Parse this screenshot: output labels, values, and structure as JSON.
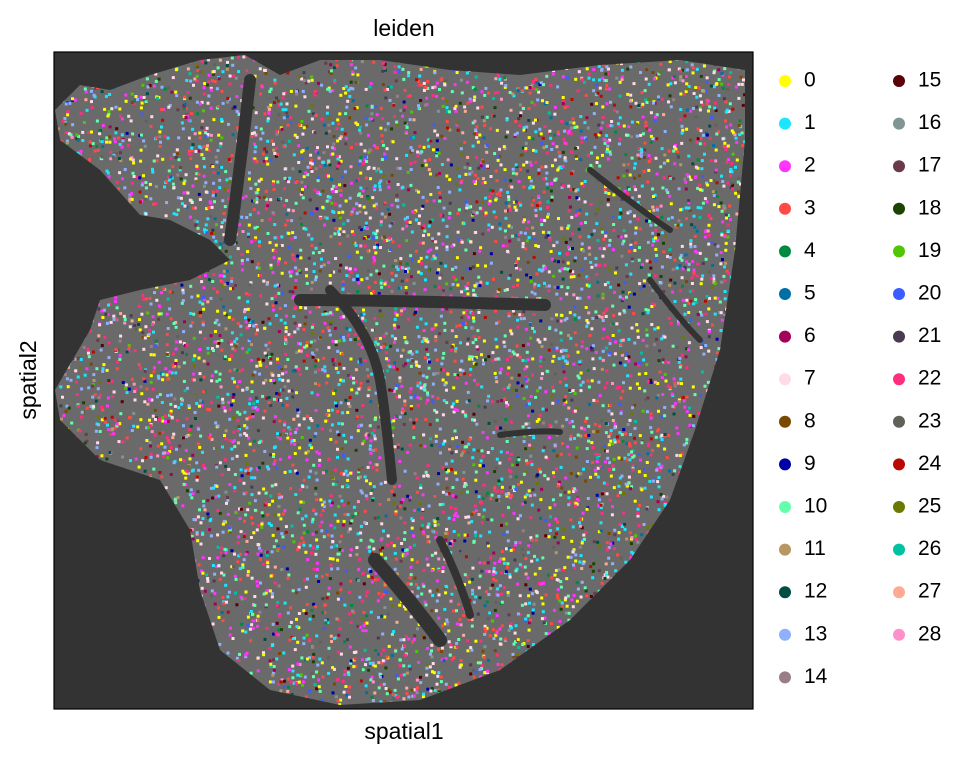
{
  "chart_data": {
    "type": "scatter",
    "title": "leiden",
    "x_label": "spatial1",
    "y_label": "spatial2",
    "series": [
      {
        "name": "0",
        "color": "#FFFF00"
      },
      {
        "name": "1",
        "color": "#1CE6FF"
      },
      {
        "name": "2",
        "color": "#FF34FF"
      },
      {
        "name": "3",
        "color": "#FF4A46"
      },
      {
        "name": "4",
        "color": "#008941"
      },
      {
        "name": "5",
        "color": "#006FA6"
      },
      {
        "name": "6",
        "color": "#A30059"
      },
      {
        "name": "7",
        "color": "#FFDBE5"
      },
      {
        "name": "8",
        "color": "#7A4900"
      },
      {
        "name": "9",
        "color": "#0000A6"
      },
      {
        "name": "10",
        "color": "#63FFAC"
      },
      {
        "name": "11",
        "color": "#B79762"
      },
      {
        "name": "12",
        "color": "#004D43"
      },
      {
        "name": "13",
        "color": "#8FB0FF"
      },
      {
        "name": "14",
        "color": "#997D87"
      },
      {
        "name": "15",
        "color": "#5A0007"
      },
      {
        "name": "16",
        "color": "#809693"
      },
      {
        "name": "17",
        "color": "#6A3A4C"
      },
      {
        "name": "18",
        "color": "#1B4400"
      },
      {
        "name": "19",
        "color": "#4FC601"
      },
      {
        "name": "20",
        "color": "#3B5DFF"
      },
      {
        "name": "21",
        "color": "#4A3B53"
      },
      {
        "name": "22",
        "color": "#FF2F80"
      },
      {
        "name": "23",
        "color": "#61615A"
      },
      {
        "name": "24",
        "color": "#BA0900"
      },
      {
        "name": "25",
        "color": "#6B7900"
      },
      {
        "name": "26",
        "color": "#00C2A0"
      },
      {
        "name": "27",
        "color": "#FFAA92"
      },
      {
        "name": "28",
        "color": "#FF90C9"
      }
    ]
  }
}
